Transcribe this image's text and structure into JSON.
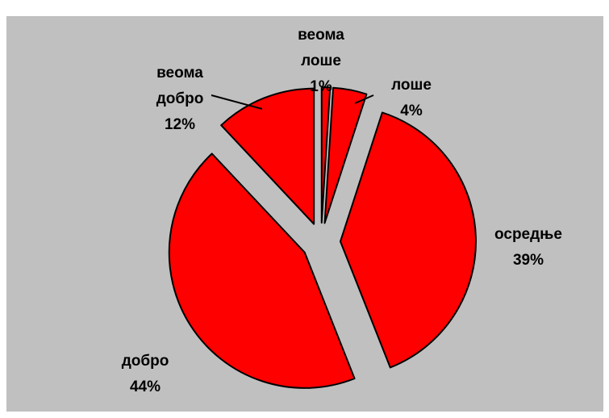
{
  "chart_data": {
    "type": "pie",
    "categories": [
      "веома лоше",
      "лоше",
      "осредње",
      "добро",
      "веома добро"
    ],
    "values": [
      1,
      4,
      39,
      44,
      12
    ],
    "value_labels": [
      "1%",
      "4%",
      "39%",
      "44%",
      "12%"
    ],
    "color": "#ff0000"
  }
}
